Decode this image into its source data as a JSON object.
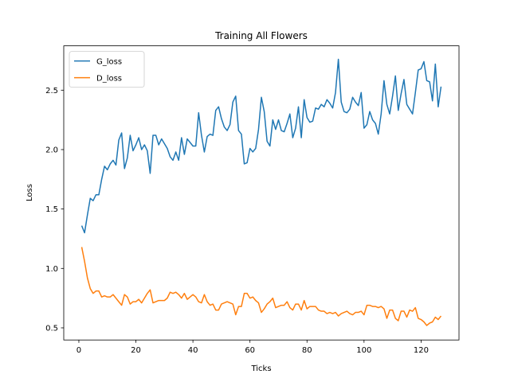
{
  "chart_data": {
    "type": "line",
    "title": "Training All Flowers",
    "xlabel": "Ticks",
    "ylabel": "Loss",
    "x": [
      1,
      2,
      3,
      4,
      5,
      6,
      7,
      8,
      9,
      10,
      11,
      12,
      13,
      14,
      15,
      16,
      17,
      18,
      19,
      20,
      21,
      22,
      23,
      24,
      25,
      26,
      27,
      28,
      29,
      30,
      31,
      32,
      33,
      34,
      35,
      36,
      37,
      38,
      39,
      40,
      41,
      42,
      43,
      44,
      45,
      46,
      47,
      48,
      49,
      50,
      51,
      52,
      53,
      54,
      55,
      56,
      57,
      58,
      59,
      60,
      61,
      62,
      63,
      64,
      65,
      66,
      67,
      68,
      69,
      70,
      71,
      72,
      73,
      74,
      75,
      76,
      77,
      78,
      79,
      80,
      81,
      82,
      83,
      84,
      85,
      86,
      87,
      88,
      89,
      90,
      91,
      92,
      93,
      94,
      95,
      96,
      97,
      98,
      99,
      100,
      101,
      102,
      103,
      104,
      105,
      106,
      107,
      108,
      109,
      110,
      111,
      112,
      113,
      114,
      115,
      116,
      117,
      118,
      119,
      120,
      121,
      122,
      123,
      124,
      125,
      126,
      127
    ],
    "series": [
      {
        "name": "G_loss",
        "color": "#1f77b4",
        "values": [
          1.36,
          1.3,
          1.45,
          1.59,
          1.57,
          1.62,
          1.62,
          1.75,
          1.86,
          1.83,
          1.88,
          1.91,
          1.87,
          2.08,
          2.14,
          1.84,
          1.93,
          2.12,
          1.99,
          2.04,
          2.1,
          2.0,
          2.04,
          1.99,
          1.8,
          2.12,
          2.12,
          2.04,
          2.09,
          2.05,
          2.01,
          1.94,
          1.91,
          1.98,
          1.91,
          2.1,
          1.96,
          2.09,
          2.06,
          2.03,
          2.03,
          2.31,
          2.12,
          1.98,
          2.11,
          2.13,
          2.12,
          2.33,
          2.36,
          2.26,
          2.19,
          2.16,
          2.21,
          2.4,
          2.45,
          2.16,
          2.13,
          1.88,
          1.89,
          2.01,
          1.98,
          2.01,
          2.17,
          2.44,
          2.32,
          2.07,
          2.03,
          2.25,
          2.17,
          2.25,
          2.16,
          2.15,
          2.22,
          2.3,
          2.1,
          2.18,
          2.36,
          2.1,
          2.42,
          2.27,
          2.23,
          2.24,
          2.35,
          2.34,
          2.38,
          2.36,
          2.42,
          2.39,
          2.35,
          2.48,
          2.76,
          2.4,
          2.32,
          2.31,
          2.34,
          2.44,
          2.4,
          2.37,
          2.48,
          2.18,
          2.21,
          2.32,
          2.25,
          2.22,
          2.13,
          2.3,
          2.58,
          2.38,
          2.3,
          2.45,
          2.62,
          2.33,
          2.47,
          2.59,
          2.38,
          2.34,
          2.3,
          2.48,
          2.67,
          2.68,
          2.74,
          2.58,
          2.57,
          2.41,
          2.72,
          2.36,
          2.53
        ]
      },
      {
        "name": "D_loss",
        "color": "#ff7f0e",
        "values": [
          1.18,
          1.06,
          0.92,
          0.83,
          0.79,
          0.81,
          0.81,
          0.76,
          0.77,
          0.76,
          0.76,
          0.78,
          0.75,
          0.72,
          0.69,
          0.78,
          0.76,
          0.7,
          0.72,
          0.72,
          0.74,
          0.71,
          0.75,
          0.79,
          0.82,
          0.71,
          0.72,
          0.73,
          0.73,
          0.73,
          0.75,
          0.8,
          0.79,
          0.8,
          0.78,
          0.75,
          0.79,
          0.74,
          0.76,
          0.78,
          0.76,
          0.72,
          0.71,
          0.78,
          0.72,
          0.69,
          0.7,
          0.65,
          0.65,
          0.7,
          0.71,
          0.72,
          0.71,
          0.7,
          0.61,
          0.68,
          0.68,
          0.79,
          0.79,
          0.75,
          0.76,
          0.73,
          0.71,
          0.63,
          0.66,
          0.7,
          0.72,
          0.75,
          0.67,
          0.68,
          0.69,
          0.69,
          0.72,
          0.67,
          0.65,
          0.7,
          0.7,
          0.65,
          0.73,
          0.66,
          0.68,
          0.68,
          0.68,
          0.65,
          0.64,
          0.64,
          0.62,
          0.63,
          0.62,
          0.63,
          0.6,
          0.62,
          0.63,
          0.64,
          0.62,
          0.61,
          0.63,
          0.63,
          0.64,
          0.61,
          0.69,
          0.69,
          0.68,
          0.68,
          0.67,
          0.68,
          0.66,
          0.58,
          0.65,
          0.65,
          0.58,
          0.56,
          0.64,
          0.64,
          0.59,
          0.65,
          0.64,
          0.67,
          0.58,
          0.57,
          0.55,
          0.52,
          0.54,
          0.55,
          0.59,
          0.57,
          0.6
        ]
      }
    ],
    "xlim": [
      -5.3,
      133.3
    ],
    "ylim": [
      0.398,
      2.873
    ],
    "xticks": [
      0,
      20,
      40,
      60,
      80,
      100,
      120
    ],
    "yticks": [
      0.5,
      {
        "value": 1,
        "label": "1.0"
      },
      1.5,
      {
        "value": 2,
        "label": "2.0"
      },
      2.5
    ],
    "legend": "upper left",
    "grid": false
  }
}
